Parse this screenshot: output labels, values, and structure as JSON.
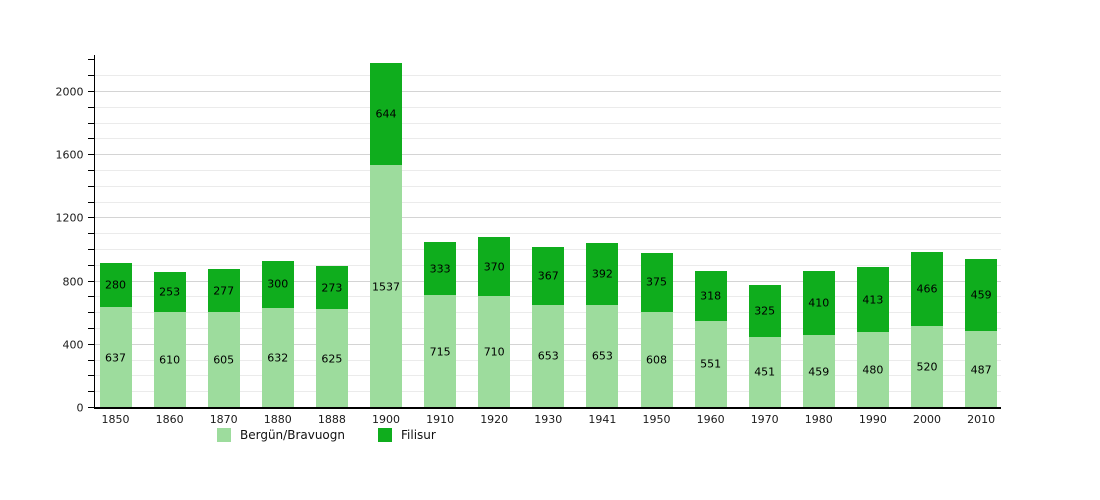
{
  "chart_data": {
    "type": "bar",
    "stacked": true,
    "title": "",
    "xlabel": "",
    "ylabel": "",
    "categories": [
      "1850",
      "1860",
      "1870",
      "1880",
      "1888",
      "1900",
      "1910",
      "1920",
      "1930",
      "1941",
      "1950",
      "1960",
      "1970",
      "1980",
      "1990",
      "2000",
      "2010"
    ],
    "series": [
      {
        "name": "Bergün/Bravuogn",
        "color": "#9ddc9d",
        "values": [
          637,
          610,
          605,
          632,
          625,
          1537,
          715,
          710,
          653,
          653,
          608,
          551,
          451,
          459,
          480,
          520,
          487
        ]
      },
      {
        "name": "Filisur",
        "color": "#0fad1d",
        "values": [
          280,
          253,
          277,
          300,
          273,
          644,
          333,
          370,
          367,
          392,
          375,
          318,
          325,
          410,
          413,
          466,
          459
        ]
      }
    ],
    "ylim": [
      0,
      2234
    ],
    "yticks": [
      0,
      400,
      800,
      1200,
      1600,
      2000
    ],
    "minor_grid_step": 100,
    "major_grid_step": 400,
    "grid": true,
    "data_labels": true,
    "legend_position": "bottom",
    "axis_color": "#000000",
    "background_color": "#ffffff"
  }
}
